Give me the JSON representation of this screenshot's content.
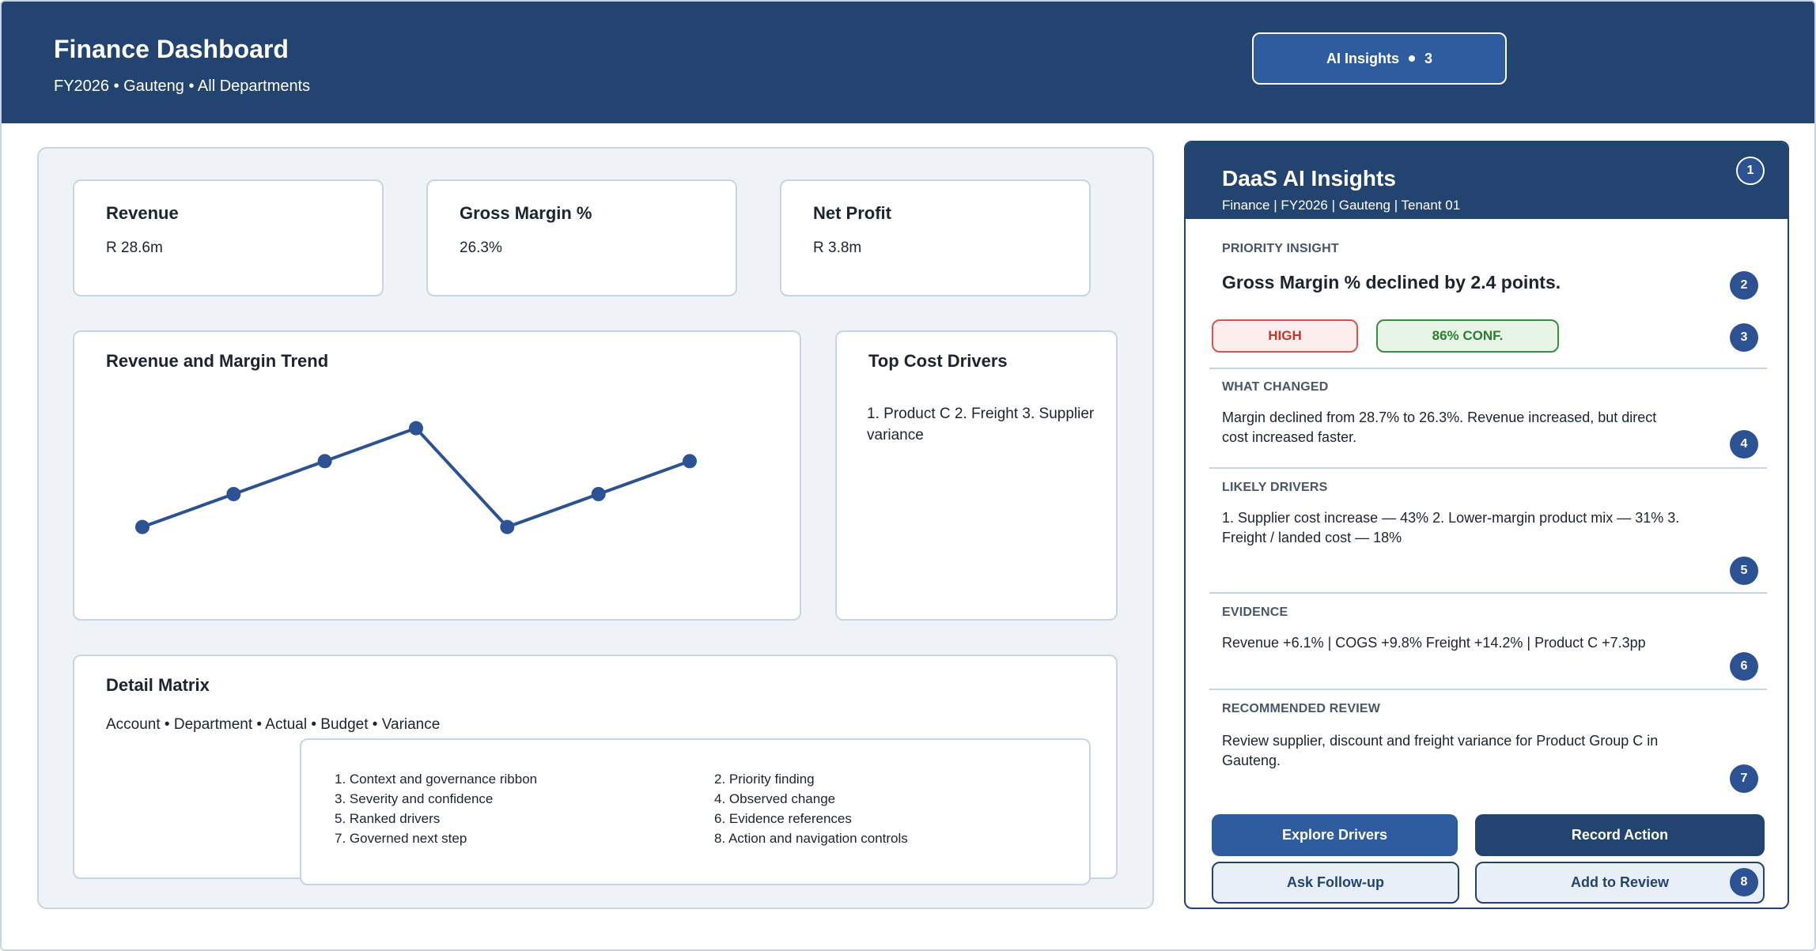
{
  "header": {
    "title": "Finance Dashboard",
    "subtitle": "FY2026 • Gauteng • All Departments",
    "ai_button_label": "AI Insights",
    "ai_button_count": "3"
  },
  "kpis": [
    {
      "title": "Revenue",
      "value": "R 28.6m"
    },
    {
      "title": "Gross Margin %",
      "value": "26.3%"
    },
    {
      "title": "Net Profit",
      "value": "R 3.8m"
    }
  ],
  "trend": {
    "title": "Revenue and Margin Trend"
  },
  "chart_data": {
    "type": "line",
    "title": "Revenue and Margin Trend",
    "x": [
      1,
      2,
      3,
      4,
      5,
      6,
      7
    ],
    "series": [
      {
        "values": [
          0.2,
          0.3,
          0.4,
          0.5,
          0.2,
          0.3,
          0.4
        ]
      }
    ],
    "xlabel": "",
    "ylabel": "",
    "ylim": [
      0,
      0.6
    ],
    "grid": false,
    "color": "#2c5293"
  },
  "cost_drivers": {
    "title": "Top Cost Drivers",
    "text": "1. Product C  2. Freight  3. Supplier variance"
  },
  "matrix": {
    "title": "Detail Matrix",
    "subtitle": "Account • Department • Actual • Budget • Variance",
    "legend": [
      "1. Context and governance ribbon",
      "2. Priority finding",
      "3. Severity and confidence",
      "4. Observed change",
      "5. Ranked drivers",
      "6. Evidence references",
      "7. Governed next step",
      "8. Action and navigation controls"
    ]
  },
  "panel": {
    "title": "DaaS AI Insights",
    "subtitle": "Finance | FY2026 | Gauteng | Tenant 01",
    "priority_label": "PRIORITY INSIGHT",
    "priority_text": "Gross Margin % declined by 2.4 points.",
    "severity": "HIGH",
    "confidence": "86% CONF.",
    "what_changed_label": "WHAT CHANGED",
    "what_changed_text": "Margin declined from 28.7% to 26.3%. Revenue increased, but direct cost increased faster.",
    "drivers_label": "LIKELY DRIVERS",
    "drivers_text": "1. Supplier cost increase — 43%  2. Lower-margin product mix — 31%  3. Freight / landed cost — 18%",
    "evidence_label": "EVIDENCE",
    "evidence_text": "Revenue +6.1% | COGS +9.8% Freight +14.2% | Product C +7.3pp",
    "review_label": "RECOMMENDED REVIEW",
    "review_text": "Review supplier, discount and freight variance for Product Group C in Gauteng.",
    "buttons": {
      "explore": "Explore Drivers",
      "record": "Record Action",
      "ask": "Ask Follow-up",
      "add": "Add to Review"
    },
    "markers": [
      "1",
      "2",
      "3",
      "4",
      "5",
      "6",
      "7",
      "8"
    ]
  },
  "colors": {
    "header": "#234470",
    "accent": "#2f5b9f",
    "high": "#c0392b",
    "confidence": "#2e7d32"
  }
}
